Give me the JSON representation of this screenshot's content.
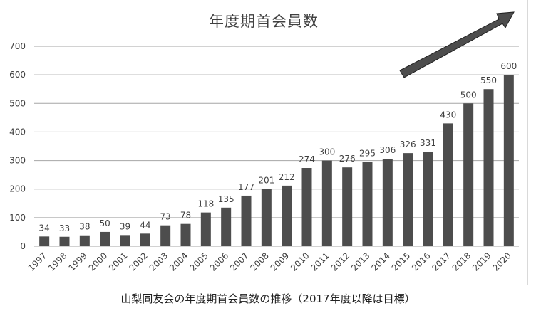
{
  "chart_data": {
    "type": "bar",
    "title": "年度期首会員数",
    "caption": "山梨同友会の年度期首会員数の推移（2017年度以降は目標）",
    "xlabel": "",
    "ylabel": "",
    "ylim": [
      0,
      700
    ],
    "yticks": [
      0,
      100,
      200,
      300,
      400,
      500,
      600,
      700
    ],
    "grid": true,
    "legend": null,
    "bar_color": "#4d4d4d",
    "categories": [
      "1997",
      "1998",
      "1999",
      "2000",
      "2001",
      "2002",
      "2003",
      "2004",
      "2005",
      "2006",
      "2007",
      "2008",
      "2009",
      "2010",
      "2011",
      "2012",
      "2013",
      "2014",
      "2015",
      "2016",
      "2017",
      "2018",
      "2019",
      "2020"
    ],
    "values": [
      34,
      33,
      38,
      50,
      39,
      44,
      73,
      78,
      118,
      135,
      177,
      201,
      212,
      274,
      300,
      276,
      295,
      306,
      326,
      331,
      430,
      500,
      550,
      600
    ],
    "annotations": [
      {
        "type": "arrow",
        "description": "upward trend arrow above 2015-2020 bars"
      }
    ]
  }
}
